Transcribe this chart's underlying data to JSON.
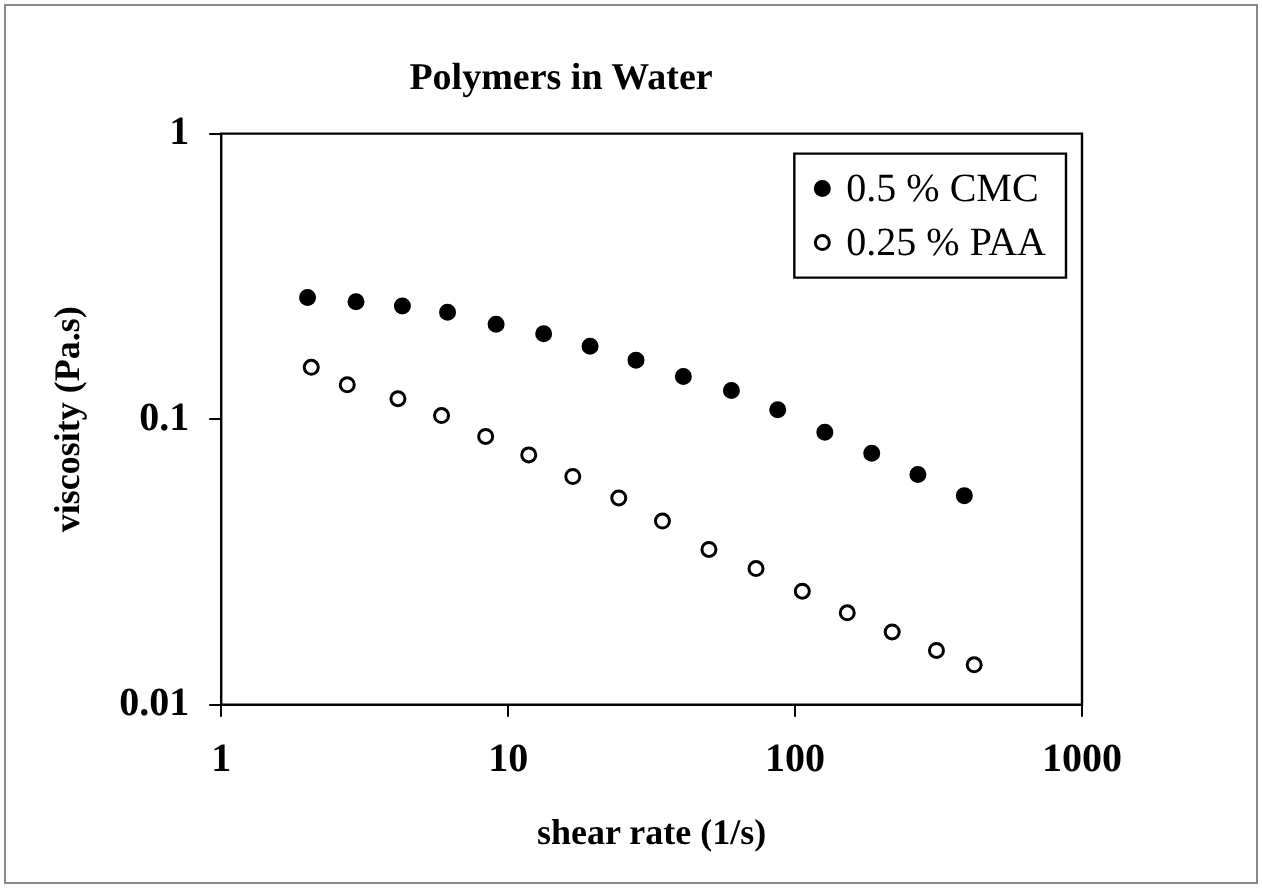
{
  "chart_data": {
    "type": "scatter",
    "title": "Polymers in Water",
    "xlabel": "shear rate (1/s)",
    "ylabel": "viscosity (Pa.s)",
    "log": "xy",
    "xlim": [
      1,
      1000
    ],
    "xticks": [
      1,
      10,
      100,
      1000
    ],
    "ylim": [
      0.01,
      1
    ],
    "yticks": [
      0.01,
      0.1,
      1
    ],
    "grid": false,
    "legend": "top right",
    "marker": "circle",
    "series": [
      {
        "name": "0.5 % CMC",
        "color": "#000000",
        "x": [
          2,
          2.95,
          4.28,
          6.15,
          9.08,
          13.3,
          19.3,
          27.9,
          40.8,
          60,
          87,
          127,
          185,
          268,
          389
        ],
        "values": [
          0.267,
          0.258,
          0.249,
          0.237,
          0.215,
          0.199,
          0.18,
          0.161,
          0.141,
          0.126,
          0.108,
          0.09,
          0.076,
          0.064,
          0.054
        ]
      },
      {
        "name": "0.25 % PAA",
        "color": "#ffffff",
        "x": [
          2.06,
          2.75,
          4.13,
          5.86,
          8.35,
          11.8,
          16.8,
          24.3,
          34.5,
          50.1,
          73.1,
          106,
          152,
          218,
          311,
          421
        ],
        "values": [
          0.152,
          0.132,
          0.118,
          0.103,
          0.087,
          0.075,
          0.063,
          0.053,
          0.044,
          0.035,
          0.03,
          0.025,
          0.021,
          0.018,
          0.0155,
          0.0138
        ]
      }
    ]
  }
}
